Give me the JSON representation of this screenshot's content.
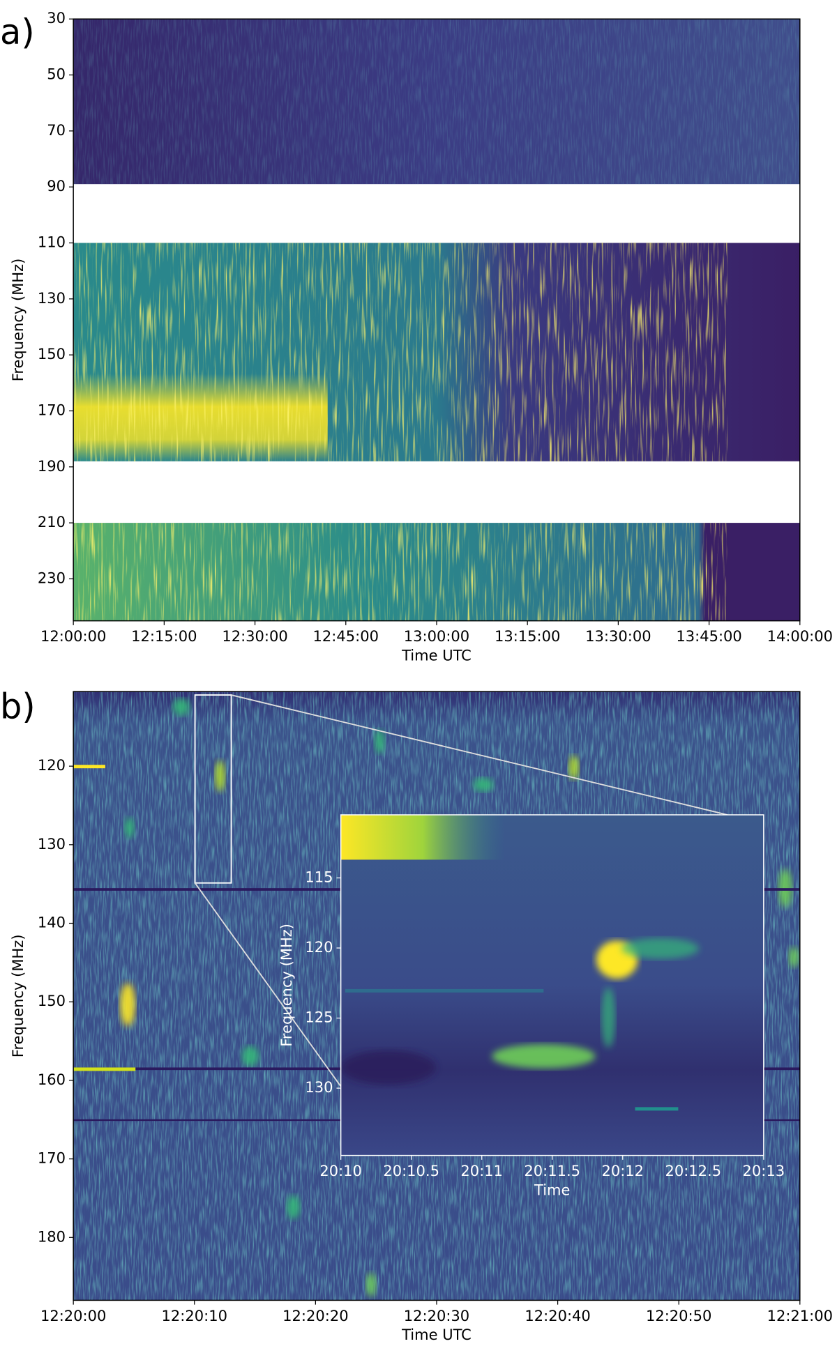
{
  "chart_data": [
    {
      "type": "heatmap",
      "label": "a)",
      "xlabel": "Time UTC",
      "ylabel": "Frequency (MHz)",
      "xticks": [
        "12:00:00",
        "12:15:00",
        "12:30:00",
        "12:45:00",
        "13:00:00",
        "13:15:00",
        "13:30:00",
        "13:45:00",
        "14:00:00"
      ],
      "ylim": [
        30,
        245
      ],
      "yticks": [
        30,
        50,
        70,
        90,
        110,
        130,
        150,
        170,
        190,
        210,
        230
      ],
      "bands": [
        [
          30,
          89
        ],
        [
          110,
          188
        ],
        [
          210,
          245
        ]
      ]
    },
    {
      "type": "heatmap",
      "label": "b)",
      "xlabel": "Time UTC",
      "ylabel": "Frequency (MHz)",
      "xticks": [
        "12:20:00",
        "12:20:10",
        "12:20:20",
        "12:20:30",
        "12:20:40",
        "12:20:50",
        "12:21:00"
      ],
      "ylim": [
        110.5,
        188
      ],
      "yticks": [
        120,
        130,
        140,
        150,
        160,
        170,
        180
      ]
    },
    {
      "type": "heatmap",
      "xlabel": "Time",
      "ylabel": "Frequency (MHz)",
      "xticks": [
        "20:10",
        "20:10.5",
        "20:11",
        "20:11.5",
        "20:12",
        "20:12.5",
        "20:13"
      ],
      "ylim": [
        110.5,
        134.8
      ],
      "yticks": [
        115,
        120,
        125,
        130
      ]
    }
  ]
}
